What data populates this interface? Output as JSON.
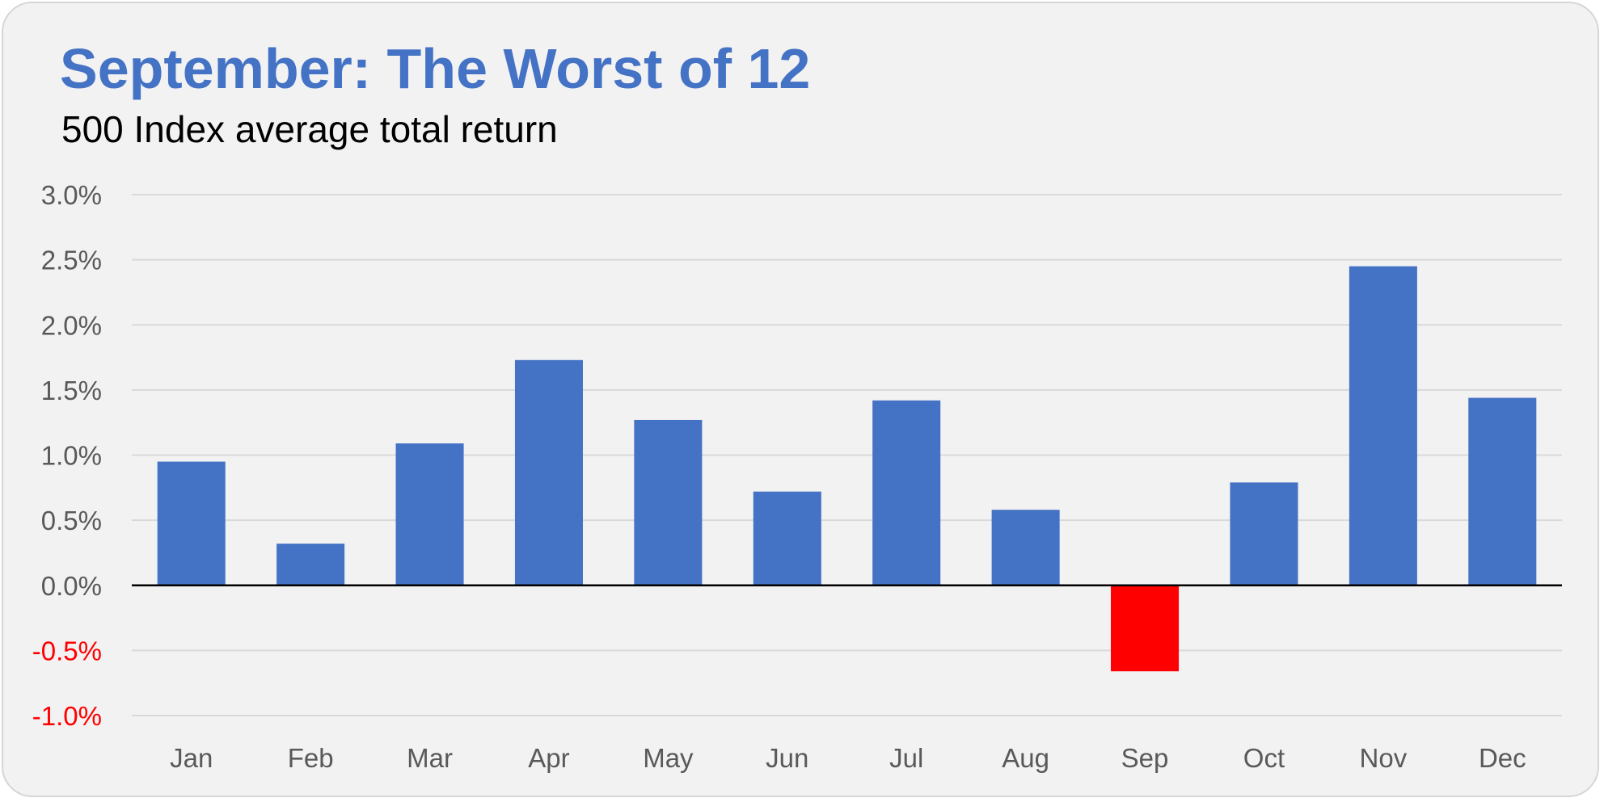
{
  "chart_data": {
    "type": "bar",
    "title": "September: The Worst of 12",
    "subtitle": "500 Index average total return",
    "categories": [
      "Jan",
      "Feb",
      "Mar",
      "Apr",
      "May",
      "Jun",
      "Jul",
      "Aug",
      "Sep",
      "Oct",
      "Nov",
      "Dec"
    ],
    "series": [
      {
        "values": [
          0.95,
          0.32,
          1.09,
          1.73,
          1.27,
          0.72,
          1.42,
          0.58,
          -0.66,
          0.79,
          2.45,
          1.44
        ]
      }
    ],
    "ylim": [
      -1.0,
      3.0
    ],
    "yticks": [
      "3.0%",
      "2.5%",
      "2.0%",
      "1.5%",
      "1.0%",
      "0.5%",
      "0.0%",
      "-0.5%",
      "-1.0%"
    ],
    "ytick_values": [
      3.0,
      2.5,
      2.0,
      1.5,
      1.0,
      0.5,
      0.0,
      -0.5,
      -1.0
    ],
    "xlabel": "",
    "ylabel": "",
    "grid": true,
    "legend": "none",
    "colors": {
      "positive": "#4472c4",
      "negative": "#ff0000",
      "title": "#4472c4",
      "tick_positive": "#595959",
      "tick_negative": "#ff0000",
      "gridline": "#d9d9d9",
      "zero_line": "#000000"
    }
  }
}
